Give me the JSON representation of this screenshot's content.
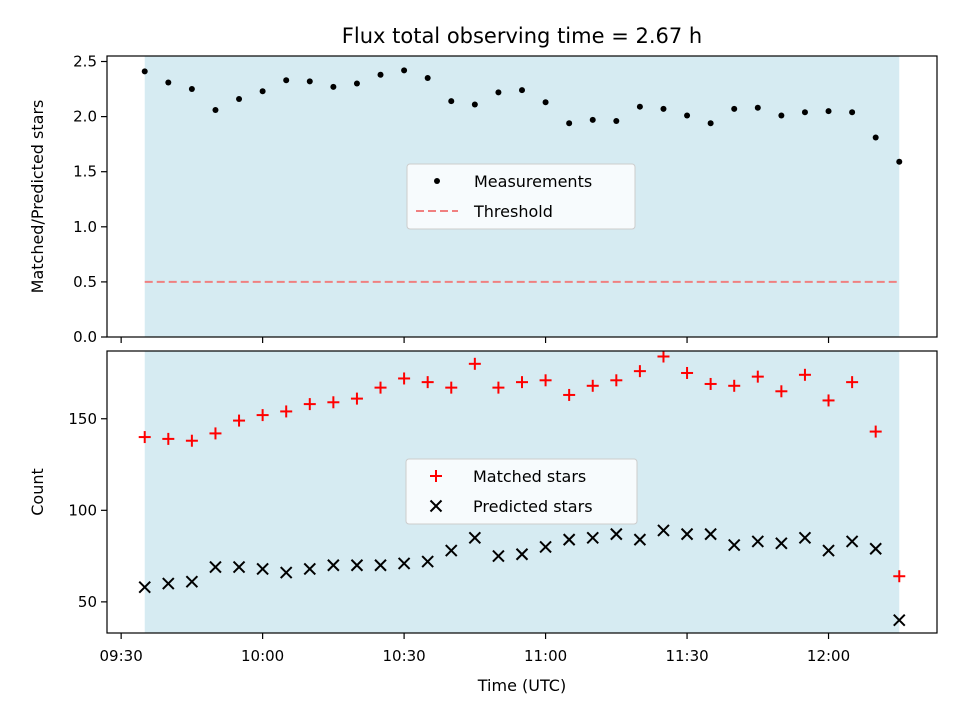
{
  "chart_data": [
    {
      "type": "scatter",
      "title": "Flux total observing time = 2.67 h",
      "ylabel": "Matched/Predicted stars",
      "xlabel": "",
      "xlim_minutes_utc": [
        567,
        743
      ],
      "ylim": [
        0,
        2.55
      ],
      "yticks": [
        0,
        0.5,
        1.0,
        1.5,
        2.0,
        2.5
      ],
      "ytick_labels": [
        "0.0",
        "0.5",
        "1.0",
        "1.5",
        "2.0",
        "2.5"
      ],
      "xticks_shown": false,
      "shaded_span": {
        "start": "09:35",
        "end": "12:15",
        "color": "#add8e6"
      },
      "threshold": {
        "value": 0.5,
        "color": "#f08080",
        "style": "dashed"
      },
      "legend": {
        "placement": "center",
        "entries": [
          "Measurements",
          "Threshold"
        ]
      },
      "series": [
        {
          "name": "Measurements",
          "marker": "dot",
          "color": "#000000",
          "x": [
            "09:35",
            "09:40",
            "09:45",
            "09:50",
            "09:55",
            "10:00",
            "10:05",
            "10:10",
            "10:15",
            "10:20",
            "10:25",
            "10:30",
            "10:35",
            "10:40",
            "10:45",
            "10:50",
            "10:55",
            "11:00",
            "11:05",
            "11:10",
            "11:15",
            "11:20",
            "11:25",
            "11:30",
            "11:35",
            "11:40",
            "11:45",
            "11:50",
            "11:55",
            "12:00",
            "12:05",
            "12:10",
            "12:15"
          ],
          "y": [
            2.41,
            2.31,
            2.25,
            2.06,
            2.16,
            2.23,
            2.33,
            2.32,
            2.27,
            2.3,
            2.38,
            2.42,
            2.35,
            2.14,
            2.11,
            2.22,
            2.24,
            2.13,
            1.94,
            1.97,
            1.96,
            2.09,
            2.07,
            2.01,
            1.94,
            2.07,
            2.08,
            2.01,
            2.04,
            2.05,
            2.04,
            1.81,
            1.59
          ]
        }
      ]
    },
    {
      "type": "scatter",
      "title": "",
      "ylabel": "Count",
      "xlabel": "Time (UTC)",
      "xlim_minutes_utc": [
        567,
        743
      ],
      "ylim": [
        33,
        187
      ],
      "yticks": [
        50,
        100,
        150
      ],
      "ytick_labels": [
        "50",
        "100",
        "150"
      ],
      "xticks": [
        "09:30",
        "10:00",
        "10:30",
        "11:00",
        "11:30",
        "12:00"
      ],
      "shaded_span": {
        "start": "09:35",
        "end": "12:15",
        "color": "#add8e6"
      },
      "legend": {
        "placement": "center",
        "entries": [
          "Matched stars",
          "Predicted stars"
        ]
      },
      "series": [
        {
          "name": "Matched stars",
          "marker": "plus",
          "color": "#ff0000",
          "x": [
            "09:35",
            "09:40",
            "09:45",
            "09:50",
            "09:55",
            "10:00",
            "10:05",
            "10:10",
            "10:15",
            "10:20",
            "10:25",
            "10:30",
            "10:35",
            "10:40",
            "10:45",
            "10:50",
            "10:55",
            "11:00",
            "11:05",
            "11:10",
            "11:15",
            "11:20",
            "11:25",
            "11:30",
            "11:35",
            "11:40",
            "11:45",
            "11:50",
            "11:55",
            "12:00",
            "12:05",
            "12:10",
            "12:15"
          ],
          "y": [
            140,
            139,
            138,
            142,
            149,
            152,
            154,
            158,
            159,
            161,
            167,
            172,
            170,
            167,
            180,
            167,
            170,
            171,
            163,
            168,
            171,
            176,
            184,
            175,
            169,
            168,
            173,
            165,
            174,
            160,
            170,
            143,
            64
          ]
        },
        {
          "name": "Predicted stars",
          "marker": "x",
          "color": "#000000",
          "x": [
            "09:35",
            "09:40",
            "09:45",
            "09:50",
            "09:55",
            "10:00",
            "10:05",
            "10:10",
            "10:15",
            "10:20",
            "10:25",
            "10:30",
            "10:35",
            "10:40",
            "10:45",
            "10:50",
            "10:55",
            "11:00",
            "11:05",
            "11:10",
            "11:15",
            "11:20",
            "11:25",
            "11:30",
            "11:35",
            "11:40",
            "11:45",
            "11:50",
            "11:55",
            "12:00",
            "12:05",
            "12:10",
            "12:15"
          ],
          "y": [
            58,
            60,
            61,
            69,
            69,
            68,
            66,
            68,
            70,
            70,
            70,
            71,
            72,
            78,
            85,
            75,
            76,
            80,
            84,
            85,
            87,
            84,
            89,
            87,
            87,
            81,
            83,
            82,
            85,
            78,
            83,
            79,
            40
          ]
        }
      ]
    }
  ]
}
